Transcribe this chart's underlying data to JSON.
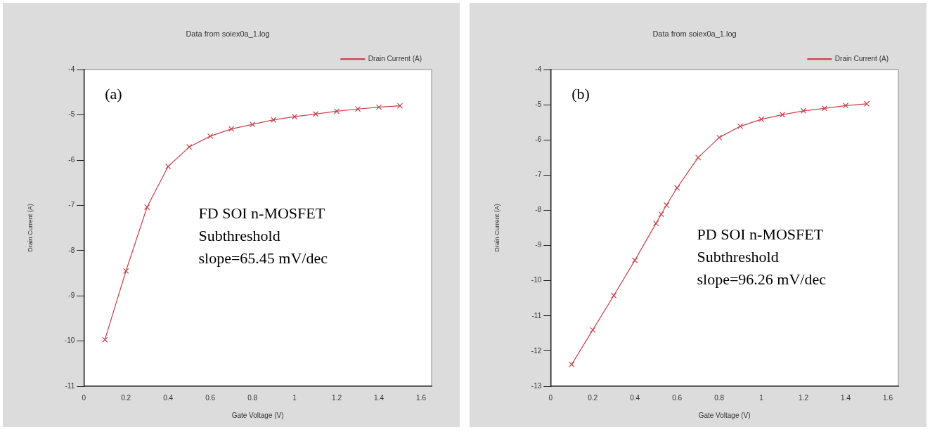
{
  "chart_data": [
    {
      "type": "line",
      "title": "Data from soiex0a_1.log",
      "xlabel": "Gate Voltage (V)",
      "ylabel": "Drain Current (A)",
      "annotations": [
        "(a)",
        "FD SOI n-MOSFET",
        "Subthreshold",
        "slope=65.45 mV/dec"
      ],
      "x": [
        0.1,
        0.2,
        0.3,
        0.4,
        0.5,
        0.6,
        0.7,
        0.8,
        0.9,
        1.0,
        1.1,
        1.2,
        1.3,
        1.4,
        1.5
      ],
      "series": [
        {
          "name": "Drain Current (A)",
          "color": "#c8414b",
          "values": [
            -9.97,
            -8.45,
            -7.04,
            -6.14,
            -5.71,
            -5.47,
            -5.31,
            -5.21,
            -5.11,
            -5.04,
            -4.98,
            -4.92,
            -4.87,
            -4.83,
            -4.8
          ]
        }
      ],
      "xlim": [
        0,
        1.65
      ],
      "xticks": [
        0,
        0.2,
        0.4,
        0.6,
        0.8,
        1,
        1.2,
        1.4,
        1.6
      ],
      "ylim": [
        -11,
        -4
      ],
      "yticks": [
        -11,
        -10,
        -9,
        -8,
        -7,
        -6,
        -5,
        -4
      ],
      "grid": false,
      "legend": "top right",
      "marker": "cross",
      "line_style": "solid"
    },
    {
      "type": "line",
      "title": "Data from soiex0a_1.log",
      "xlabel": "Gate Voltage (V)",
      "ylabel": "Drain Current (A)",
      "annotations": [
        "(b)",
        "PD SOI n-MOSFET",
        "Subthreshold",
        "slope=96.26 mV/dec"
      ],
      "x": [
        0.1,
        0.2,
        0.3,
        0.4,
        0.5,
        0.525,
        0.55,
        0.6,
        0.7,
        0.8,
        0.9,
        1.0,
        1.1,
        1.2,
        1.3,
        1.4,
        1.5
      ],
      "series": [
        {
          "name": "Drain Current (A)",
          "color": "#c8414b",
          "values": [
            -12.38,
            -11.4,
            -10.42,
            -9.42,
            -8.37,
            -8.11,
            -7.85,
            -7.36,
            -6.5,
            -5.93,
            -5.61,
            -5.41,
            -5.28,
            -5.17,
            -5.1,
            -5.02,
            -4.97
          ]
        }
      ],
      "xlim": [
        0,
        1.65
      ],
      "xticks": [
        0,
        0.2,
        0.4,
        0.6,
        0.8,
        1,
        1.2,
        1.4,
        1.6
      ],
      "ylim": [
        -13,
        -4
      ],
      "yticks": [
        -13,
        -12,
        -11,
        -10,
        -9,
        -8,
        -7,
        -6,
        -5,
        -4
      ],
      "grid": false,
      "legend": "top right",
      "marker": "cross",
      "line_style": "solid"
    }
  ]
}
